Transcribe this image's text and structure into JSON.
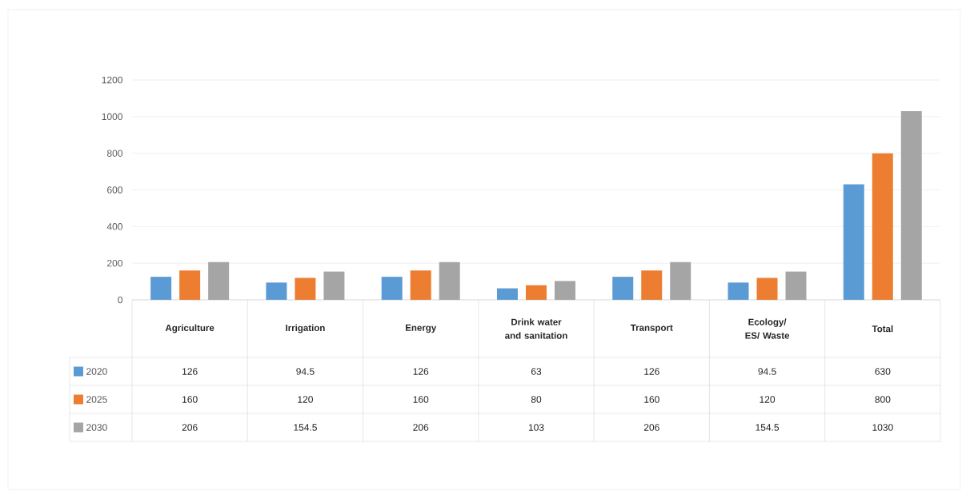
{
  "chart_data": {
    "type": "bar",
    "categories": [
      "Agriculture",
      "Irrigation",
      "Energy",
      "Drink water and sanitation",
      "Transport",
      "Ecology/ ES/ Waste",
      "Total"
    ],
    "series": [
      {
        "name": "2020",
        "color": "#5b9bd5",
        "values": [
          126,
          94.5,
          126,
          63,
          126,
          94.5,
          630
        ]
      },
      {
        "name": "2025",
        "color": "#ed7d31",
        "values": [
          160,
          120,
          160,
          80,
          160,
          120,
          800
        ]
      },
      {
        "name": "2030",
        "color": "#a5a5a5",
        "values": [
          206,
          154.5,
          206,
          103,
          206,
          154.5,
          1030
        ]
      }
    ],
    "ylim": [
      0,
      1200
    ],
    "yticks": [
      0,
      200,
      400,
      600,
      800,
      1000,
      1200
    ],
    "grid": "y",
    "legend": "bottom",
    "data_labels": true
  }
}
